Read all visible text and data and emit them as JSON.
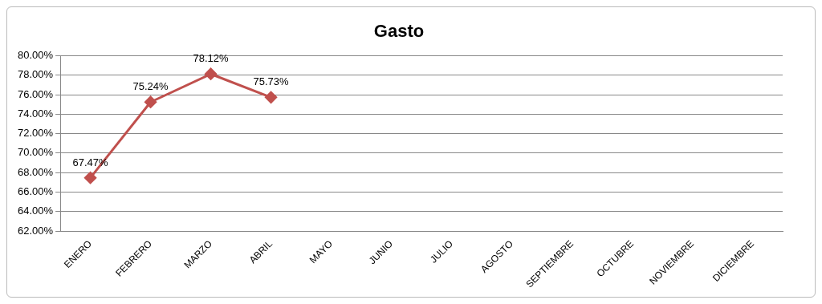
{
  "chart_data": {
    "type": "line",
    "title": "Gasto",
    "categories": [
      "ENERO",
      "FEBRERO",
      "MARZO",
      "ABRIL",
      "MAYO",
      "JUNIO",
      "JULIO",
      "AGOSTO",
      "SEPTIEMBRE",
      "OCTUBRE",
      "NOVIEMBRE",
      "DICIEMBRE"
    ],
    "series": [
      {
        "color": "#c0504d",
        "values": [
          67.47,
          75.24,
          78.12,
          75.73,
          null,
          null,
          null,
          null,
          null,
          null,
          null,
          null
        ],
        "value_labels": [
          "67.47%",
          "75.24%",
          "78.12%",
          "75.73%",
          null,
          null,
          null,
          null,
          null,
          null,
          null,
          null
        ]
      }
    ],
    "ylim": [
      62,
      80
    ],
    "yticks": [
      {
        "value": 62,
        "label": "62.00%"
      },
      {
        "value": 64,
        "label": "64.00%"
      },
      {
        "value": 66,
        "label": "66.00%"
      },
      {
        "value": 68,
        "label": "68.00%"
      },
      {
        "value": 70,
        "label": "70.00%"
      },
      {
        "value": 72,
        "label": "72.00%"
      },
      {
        "value": 74,
        "label": "74.00%"
      },
      {
        "value": 76,
        "label": "76.00%"
      },
      {
        "value": 78,
        "label": "78.00%"
      },
      {
        "value": 80,
        "label": "80.00%"
      }
    ],
    "grid": "y",
    "legend": false,
    "marker": "diamond",
    "line_style": "solid"
  }
}
